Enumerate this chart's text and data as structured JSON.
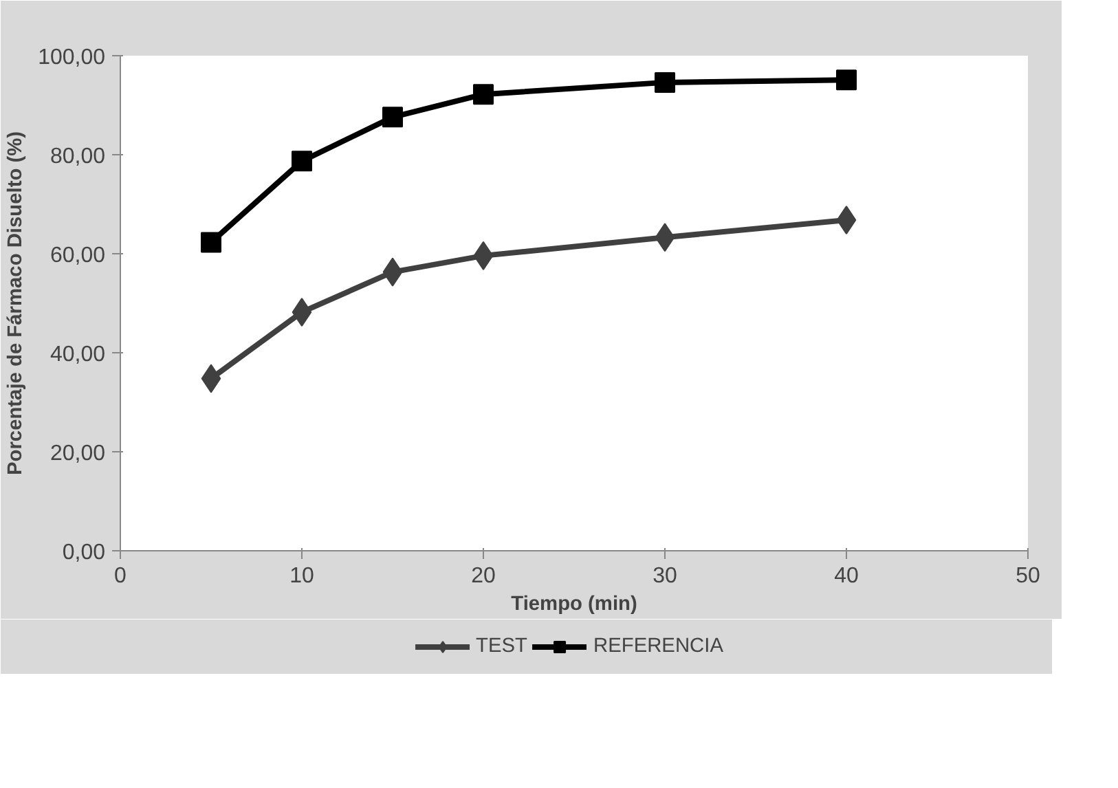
{
  "chart_data": {
    "type": "line",
    "xlabel": "Tiempo (min)",
    "ylabel": "Porcentaje de Fármaco Disuelto (%)",
    "x": [
      5,
      10,
      15,
      20,
      30,
      40
    ],
    "series": [
      {
        "name": "TEST",
        "color": "#404040",
        "values": [
          34.8,
          48.2,
          56.3,
          59.6,
          63.3,
          66.8
        ],
        "marker": "diamond"
      },
      {
        "name": "REFERENCIA",
        "color": "#000000",
        "values": [
          62.3,
          78.7,
          87.6,
          92.2,
          94.6,
          95.1
        ],
        "marker": "square"
      }
    ],
    "xlim": [
      0,
      50
    ],
    "xticks": [
      0,
      10,
      20,
      30,
      40,
      50
    ],
    "ylim": [
      0,
      100
    ],
    "yticks": [
      {
        "value": 0,
        "label": "0,00"
      },
      {
        "value": 20,
        "label": "20,00"
      },
      {
        "value": 40,
        "label": "40,00"
      },
      {
        "value": 60,
        "label": "60,00"
      },
      {
        "value": 80,
        "label": "80,00"
      },
      {
        "value": 100,
        "label": "100,00"
      }
    ],
    "grid": false,
    "legend": "bottom",
    "line_style": "solid"
  }
}
